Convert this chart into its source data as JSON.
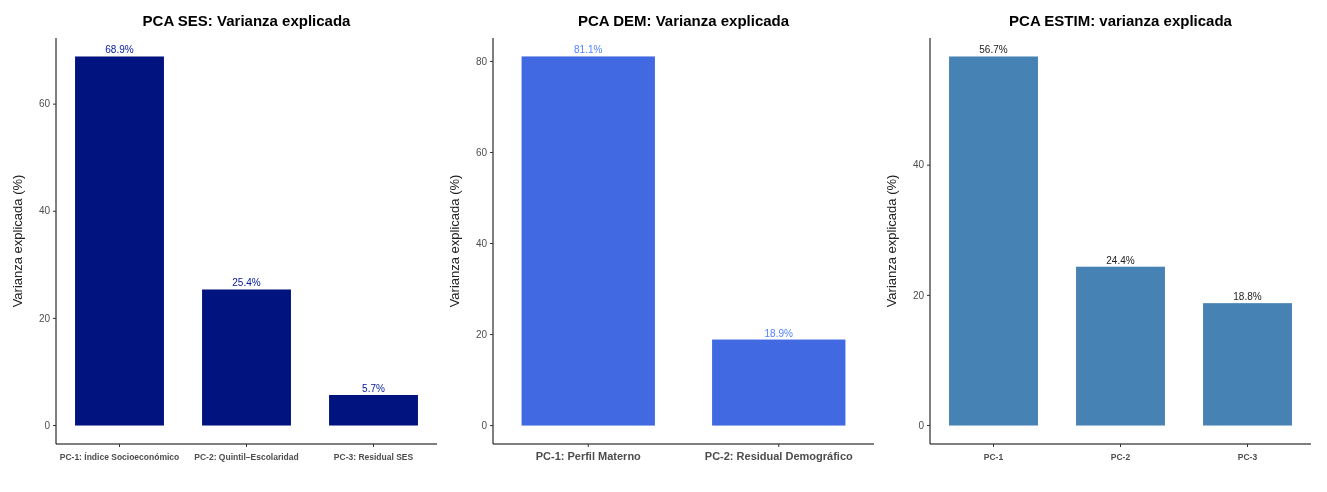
{
  "chart_data": [
    {
      "type": "bar",
      "title": "PCA SES: Varianza explicada",
      "ylabel": "Varianza explicada (%)",
      "categories": [
        "PC-1: Índice Socioeconómico",
        "PC-2: Quintil–Escolaridad",
        "PC-3: Residual SES"
      ],
      "values": [
        68.9,
        25.4,
        5.7
      ],
      "value_labels": [
        "68.9%",
        "25.4%",
        "5.7%"
      ],
      "color": "#00137f",
      "ylim": [
        -3.45,
        72.35
      ],
      "yticks": [
        0,
        20,
        40,
        60
      ],
      "grid": false
    },
    {
      "type": "bar",
      "title": "PCA DEM: Varianza explicada",
      "ylabel": "Varianza explicada (%)",
      "categories": [
        "PC-1: Perfil Materno",
        "PC-2: Residual Demográfico"
      ],
      "values": [
        81.1,
        18.9
      ],
      "value_labels": [
        "81.1%",
        "18.9%"
      ],
      "color": "#4169e1",
      "ylim": [
        -4.05,
        85.15
      ],
      "yticks": [
        0,
        20,
        40,
        60,
        80
      ],
      "grid": false
    },
    {
      "type": "bar",
      "title": "PCA ESTIM: varianza explicada",
      "ylabel": "Varianza explicada (%)",
      "categories": [
        "PC-1",
        "PC-2",
        "PC-3"
      ],
      "values": [
        56.7,
        24.4,
        18.8
      ],
      "value_labels": [
        "56.7%",
        "24.4%",
        "18.8%"
      ],
      "color": "#4682b4",
      "ylim": [
        -2.84,
        59.54
      ],
      "yticks": [
        0,
        20,
        40
      ],
      "grid": false
    }
  ]
}
